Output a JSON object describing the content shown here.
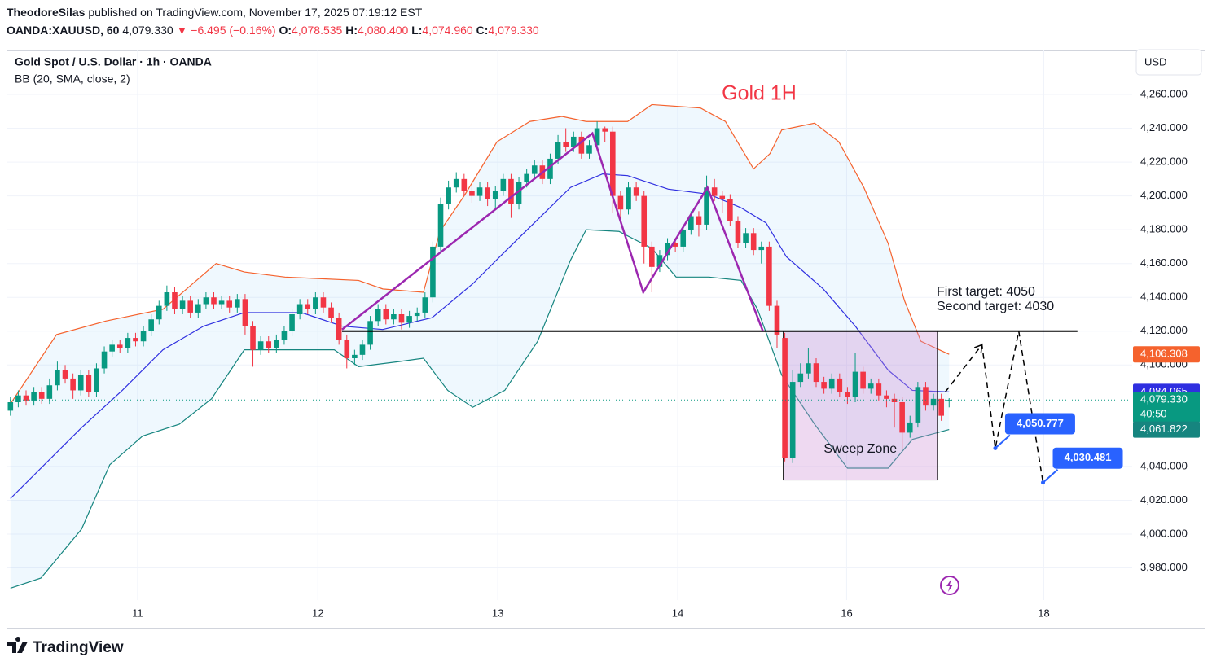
{
  "header": {
    "publisher": "TheodoreSilas",
    "published": "published on TradingView.com, November 17, 2025 07:19:12 EST",
    "symbol": "OANDA:XAUUSD, 60",
    "last": "4,079.330",
    "change": "▼ −6.495 (−0.16%)",
    "ohlc": [
      [
        "O:",
        "4,078.535"
      ],
      [
        "H:",
        "4,080.400"
      ],
      [
        "L:",
        "4,074.960"
      ],
      [
        "C:",
        "4,079.330"
      ]
    ],
    "legend_title": "Gold Spot / U.S. Dollar · 1h · OANDA",
    "indicator": "BB (20, SMA, close, 2)",
    "currency": "USD",
    "brand": "TradingView"
  },
  "chart_data": {
    "type": "candlestick",
    "title": "Gold 1H",
    "up_color": "#089981",
    "down_color": "#f23645",
    "xlim": [
      -0.5,
      143.4
    ],
    "xticks": [
      {
        "value": 16.25,
        "label": "11"
      },
      {
        "value": 39.3,
        "label": "12"
      },
      {
        "value": 62.3,
        "label": "13"
      },
      {
        "value": 85.3,
        "label": "14"
      },
      {
        "value": 106.9,
        "label": "16"
      },
      {
        "value": 132.1,
        "label": "18"
      }
    ],
    "ylim": [
      3961,
      4286
    ],
    "yticks": [
      {
        "value": 4260,
        "label": "4,260.000"
      },
      {
        "value": 4240,
        "label": "4,240.000"
      },
      {
        "value": 4220,
        "label": "4,220.000"
      },
      {
        "value": 4200,
        "label": "4,200.000"
      },
      {
        "value": 4180,
        "label": "4,180.000"
      },
      {
        "value": 4160,
        "label": "4,160.000"
      },
      {
        "value": 4140,
        "label": "4,140.000"
      },
      {
        "value": 4120,
        "label": "4,120.000"
      },
      {
        "value": 4100,
        "label": "4,100.000"
      },
      {
        "value": 4040,
        "label": "4,040.000"
      },
      {
        "value": 4020,
        "label": "4,020.000"
      },
      {
        "value": 4000,
        "label": "4,000.000"
      },
      {
        "value": 3980,
        "label": "3,980.000"
      }
    ],
    "grid": true,
    "open": [
      4073,
      4078,
      4082,
      4079,
      4084,
      4080,
      4088,
      4097,
      4092,
      4085,
      4094,
      4084,
      4098,
      4108,
      4112,
      4110,
      4116,
      4114,
      4120,
      4127,
      4135,
      4143,
      4133,
      4138,
      4131,
      4136,
      4140,
      4136,
      4138,
      4134,
      4139,
      4123,
      4109,
      4114,
      4110,
      4115,
      4120,
      4130,
      4136,
      4133,
      4140,
      4134,
      4128,
      4115,
      4104,
      4106,
      4112,
      4126,
      4133,
      4127,
      4130,
      4125,
      4129,
      4131,
      4140,
      4170,
      4195,
      4205,
      4210,
      4203,
      4200,
      4205,
      4198,
      4203,
      4210,
      4195,
      4208,
      4213,
      4218,
      4210,
      4222,
      4232,
      4229,
      4235,
      4225,
      4230,
      4240,
      4238,
      4200,
      4192,
      4205,
      4200,
      4170,
      4158,
      4165,
      4172,
      4170,
      4180,
      4188,
      4183,
      4205,
      4200,
      4198,
      4185,
      4172,
      4178,
      4168,
      4170,
      4135,
      4116,
      4045,
      4090,
      4095,
      4101,
      4090,
      4086,
      4092,
      4084,
      4081,
      4096,
      4086,
      4089,
      4082,
      4080,
      4078,
      4060,
      4066,
      4087,
      4076,
      4080,
      4078.535
    ],
    "high": [
      4081,
      4085,
      4085,
      4087,
      4087,
      4092,
      4102,
      4100,
      4095,
      4097,
      4097,
      4101,
      4111,
      4115,
      4115,
      4119,
      4119,
      4123,
      4130,
      4138,
      4147,
      4146,
      4141,
      4141,
      4139,
      4143,
      4143,
      4141,
      4141,
      4142,
      4142,
      4126,
      4117,
      4117,
      4118,
      4123,
      4133,
      4139,
      4139,
      4143,
      4143,
      4137,
      4131,
      4118,
      4109,
      4115,
      4129,
      4136,
      4136,
      4133,
      4133,
      4132,
      4134,
      4143,
      4173,
      4199,
      4209,
      4214,
      4213,
      4206,
      4208,
      4208,
      4206,
      4213,
      4213,
      4211,
      4216,
      4221,
      4221,
      4225,
      4236,
      4240,
      4238,
      4238,
      4233,
      4244,
      4241,
      4241,
      4203,
      4208,
      4208,
      4203,
      4173,
      4168,
      4175,
      4175,
      4183,
      4191,
      4191,
      4212,
      4210,
      4203,
      4201,
      4188,
      4181,
      4181,
      4173,
      4173,
      4138,
      4119,
      4097,
      4101,
      4110,
      4104,
      4093,
      4095,
      4095,
      4087,
      4107,
      4099,
      4092,
      4092,
      4085,
      4083,
      4081,
      4070,
      4090,
      4090,
      4083,
      4083,
      4080.4
    ],
    "low": [
      4070,
      4075,
      4076,
      4076,
      4077,
      4077,
      4085,
      4089,
      4080,
      4082,
      4081,
      4081,
      4095,
      4105,
      4107,
      4107,
      4111,
      4111,
      4117,
      4124,
      4132,
      4130,
      4130,
      4128,
      4128,
      4133,
      4133,
      4133,
      4131,
      4131,
      4118,
      4099,
      4106,
      4107,
      4107,
      4112,
      4117,
      4127,
      4130,
      4130,
      4131,
      4125,
      4112,
      4098,
      4100,
      4103,
      4109,
      4123,
      4124,
      4124,
      4121,
      4122,
      4126,
      4128,
      4137,
      4167,
      4192,
      4202,
      4200,
      4196,
      4197,
      4194,
      4193,
      4200,
      4187,
      4192,
      4205,
      4210,
      4207,
      4207,
      4219,
      4226,
      4226,
      4222,
      4222,
      4227,
      4232,
      4190,
      4185,
      4189,
      4197,
      4160,
      4143,
      4155,
      4162,
      4167,
      4167,
      4177,
      4176,
      4180,
      4197,
      4190,
      4182,
      4169,
      4169,
      4165,
      4160,
      4132,
      4110,
      4043,
      4042,
      4087,
      4092,
      4087,
      4083,
      4083,
      4081,
      4077,
      4078,
      4083,
      4083,
      4079,
      4075,
      4063,
      4050,
      4057,
      4063,
      4073,
      4073,
      4067,
      4074.96
    ],
    "close": [
      4078,
      4082,
      4079,
      4084,
      4080,
      4088,
      4097,
      4092,
      4085,
      4094,
      4084,
      4098,
      4108,
      4112,
      4110,
      4116,
      4114,
      4120,
      4127,
      4135,
      4143,
      4133,
      4138,
      4131,
      4136,
      4140,
      4136,
      4138,
      4134,
      4139,
      4123,
      4109,
      4114,
      4110,
      4115,
      4120,
      4130,
      4136,
      4133,
      4140,
      4134,
      4128,
      4115,
      4104,
      4106,
      4112,
      4126,
      4133,
      4127,
      4130,
      4125,
      4129,
      4131,
      4140,
      4170,
      4195,
      4205,
      4210,
      4203,
      4200,
      4205,
      4198,
      4203,
      4210,
      4195,
      4208,
      4213,
      4218,
      4210,
      4222,
      4232,
      4229,
      4235,
      4225,
      4230,
      4240,
      4238,
      4200,
      4192,
      4205,
      4200,
      4170,
      4158,
      4165,
      4172,
      4170,
      4180,
      4188,
      4183,
      4205,
      4200,
      4198,
      4185,
      4172,
      4178,
      4168,
      4170,
      4135,
      4118,
      4045,
      4090,
      4095,
      4101,
      4090,
      4086,
      4092,
      4084,
      4081,
      4096,
      4086,
      4089,
      4082,
      4080,
      4078,
      4060,
      4066,
      4087,
      4076,
      4080,
      4070,
      4079.33
    ],
    "bands": [
      {
        "color": "#f5622d",
        "x": [
          0,
          5.9,
          12.2,
          19.5,
          26.3,
          29.9,
          35.1,
          44.5,
          47.6,
          52.8,
          54.9,
          58,
          62.2,
          66.4,
          70.5,
          73.6,
          78.9,
          82,
          88.2,
          91.4,
          95,
          97.1,
          98.6,
          102.8,
          105.9,
          109.1,
          112.2,
          114.3,
          116.4,
          120
        ],
        "values": [
          4077,
          4118,
          4126,
          4133,
          4160,
          4155,
          4152,
          4150,
          4145,
          4143,
          4179,
          4200,
          4232,
          4244,
          4247,
          4244,
          4244,
          4254,
          4252,
          4244,
          4216,
          4225,
          4239,
          4243,
          4232,
          4205,
          4172,
          4138,
          4114,
          4106.308
        ]
      },
      {
        "color": "#2f2fe0",
        "x": [
          0,
          9.1,
          14.3,
          19.5,
          24.7,
          29.9,
          37.2,
          42.4,
          47.6,
          53.9,
          59.1,
          63.2,
          67.4,
          71.6,
          75.7,
          78.9,
          84.1,
          89.3,
          93.4,
          96.6,
          99.2,
          103.9,
          108,
          112.2,
          115.3,
          120
        ],
        "values": [
          4021,
          4063,
          4085,
          4109,
          4123,
          4131,
          4131,
          4123,
          4121,
          4128,
          4148,
          4167,
          4186,
          4205,
          4213,
          4212,
          4204,
          4201,
          4193,
          4184,
          4164,
          4145,
          4123,
          4097,
          4085,
          4084.065
        ]
      },
      {
        "color": "#16857f",
        "x": [
          0,
          3.9,
          9.1,
          12.7,
          16.9,
          21.6,
          25.7,
          29.9,
          35.1,
          41.4,
          44.5,
          49.7,
          52.8,
          55.9,
          59.1,
          63.2,
          67.4,
          71.6,
          73.6,
          77.8,
          82,
          85.1,
          89.3,
          93.4,
          95.5,
          98.6,
          102.8,
          107,
          112.2,
          115.3,
          120
        ],
        "values": [
          3968,
          3974,
          4003,
          4041,
          4058,
          4065,
          4080,
          4109,
          4109,
          4109,
          4099,
          4102,
          4104,
          4085,
          4075,
          4085,
          4114,
          4162,
          4180,
          4179,
          4169,
          4152,
          4152,
          4150,
          4133,
          4094,
          4065,
          4039,
          4039,
          4056,
          4061.822
        ]
      }
    ],
    "band_fill": "#2196f3",
    "price_labels": [
      {
        "value": 4106.308,
        "label": "4,106.308",
        "color": "#f5622d"
      },
      {
        "value": 4084.065,
        "label": "4,084.065",
        "color": "#2f2fe0"
      },
      {
        "value": 4079.33,
        "label": "4,079.330",
        "color": "#089981",
        "countdown": "40:50"
      },
      {
        "value": 4061.822,
        "label": "4,061.822",
        "color": "#16857f"
      }
    ],
    "level": {
      "value": 4120,
      "x": [
        42.4,
        136.4
      ],
      "color": "#000000"
    },
    "zigzag": {
      "color": "#9c27b0",
      "x": [
        42.4,
        74.4,
        80.9,
        89.1,
        96.2
      ],
      "y": [
        4121,
        4237,
        4143,
        4205,
        4120
      ]
    },
    "zone": {
      "label": "Sweep Zone",
      "color": "#ce93d8",
      "x": [
        98.8,
        118.5
      ],
      "y": [
        4032,
        4120
      ]
    },
    "targets": [
      "First target: 4050",
      "Second target: 4030"
    ],
    "projection": {
      "color": "#000000",
      "bubble_color": "#2962ff",
      "x": [
        119.5,
        124.2,
        125.9,
        128.9,
        132
      ],
      "y": [
        4084,
        4112,
        4050.777,
        4120,
        4030.481
      ],
      "value_labels": [
        null,
        null,
        "4,050.777",
        null,
        "4,030.481"
      ]
    }
  }
}
